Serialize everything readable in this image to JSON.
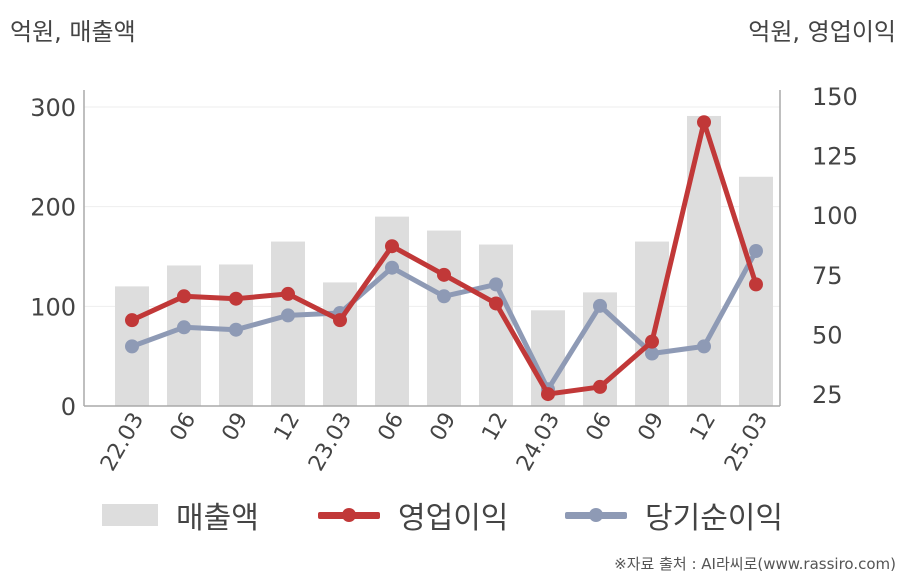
{
  "units": {
    "left": "억원, 매출액",
    "right": "억원, 영업이익"
  },
  "source": "※자료 출처 : AI라씨로(www.rassiro.com)",
  "colors": {
    "bar": "#dddddd",
    "op": "#c13838",
    "net": "#8e9ab5",
    "axis": "#aaaaaa",
    "grid": "#eeeeee",
    "text": "#444444"
  },
  "chart_data": {
    "type": "bar+line",
    "categories": [
      "22.03",
      "06",
      "09",
      "12",
      "23.03",
      "06",
      "09",
      "12",
      "24.03",
      "06",
      "09",
      "12",
      "25.03"
    ],
    "y_left": {
      "min": 0,
      "max": 300,
      "ticks": [
        0,
        100,
        200,
        300
      ]
    },
    "y_right": {
      "min": 20,
      "max": 150,
      "ticks": [
        25,
        50,
        75,
        100,
        125,
        150
      ]
    },
    "grid": true,
    "legend_position": "bottom",
    "series": [
      {
        "name": "매출액",
        "type": "bar",
        "axis": "left",
        "values": [
          120,
          141,
          142,
          165,
          124,
          190,
          176,
          162,
          96,
          114,
          165,
          291,
          230
        ]
      },
      {
        "name": "영업이익",
        "type": "line",
        "axis": "right",
        "values": [
          56,
          66,
          65,
          67,
          56,
          87,
          75,
          63,
          25,
          28,
          47,
          139,
          71
        ]
      },
      {
        "name": "당기순이익",
        "type": "line",
        "axis": "right",
        "values": [
          45,
          53,
          52,
          58,
          59,
          78,
          66,
          71,
          27,
          62,
          42,
          45,
          85
        ]
      }
    ]
  }
}
